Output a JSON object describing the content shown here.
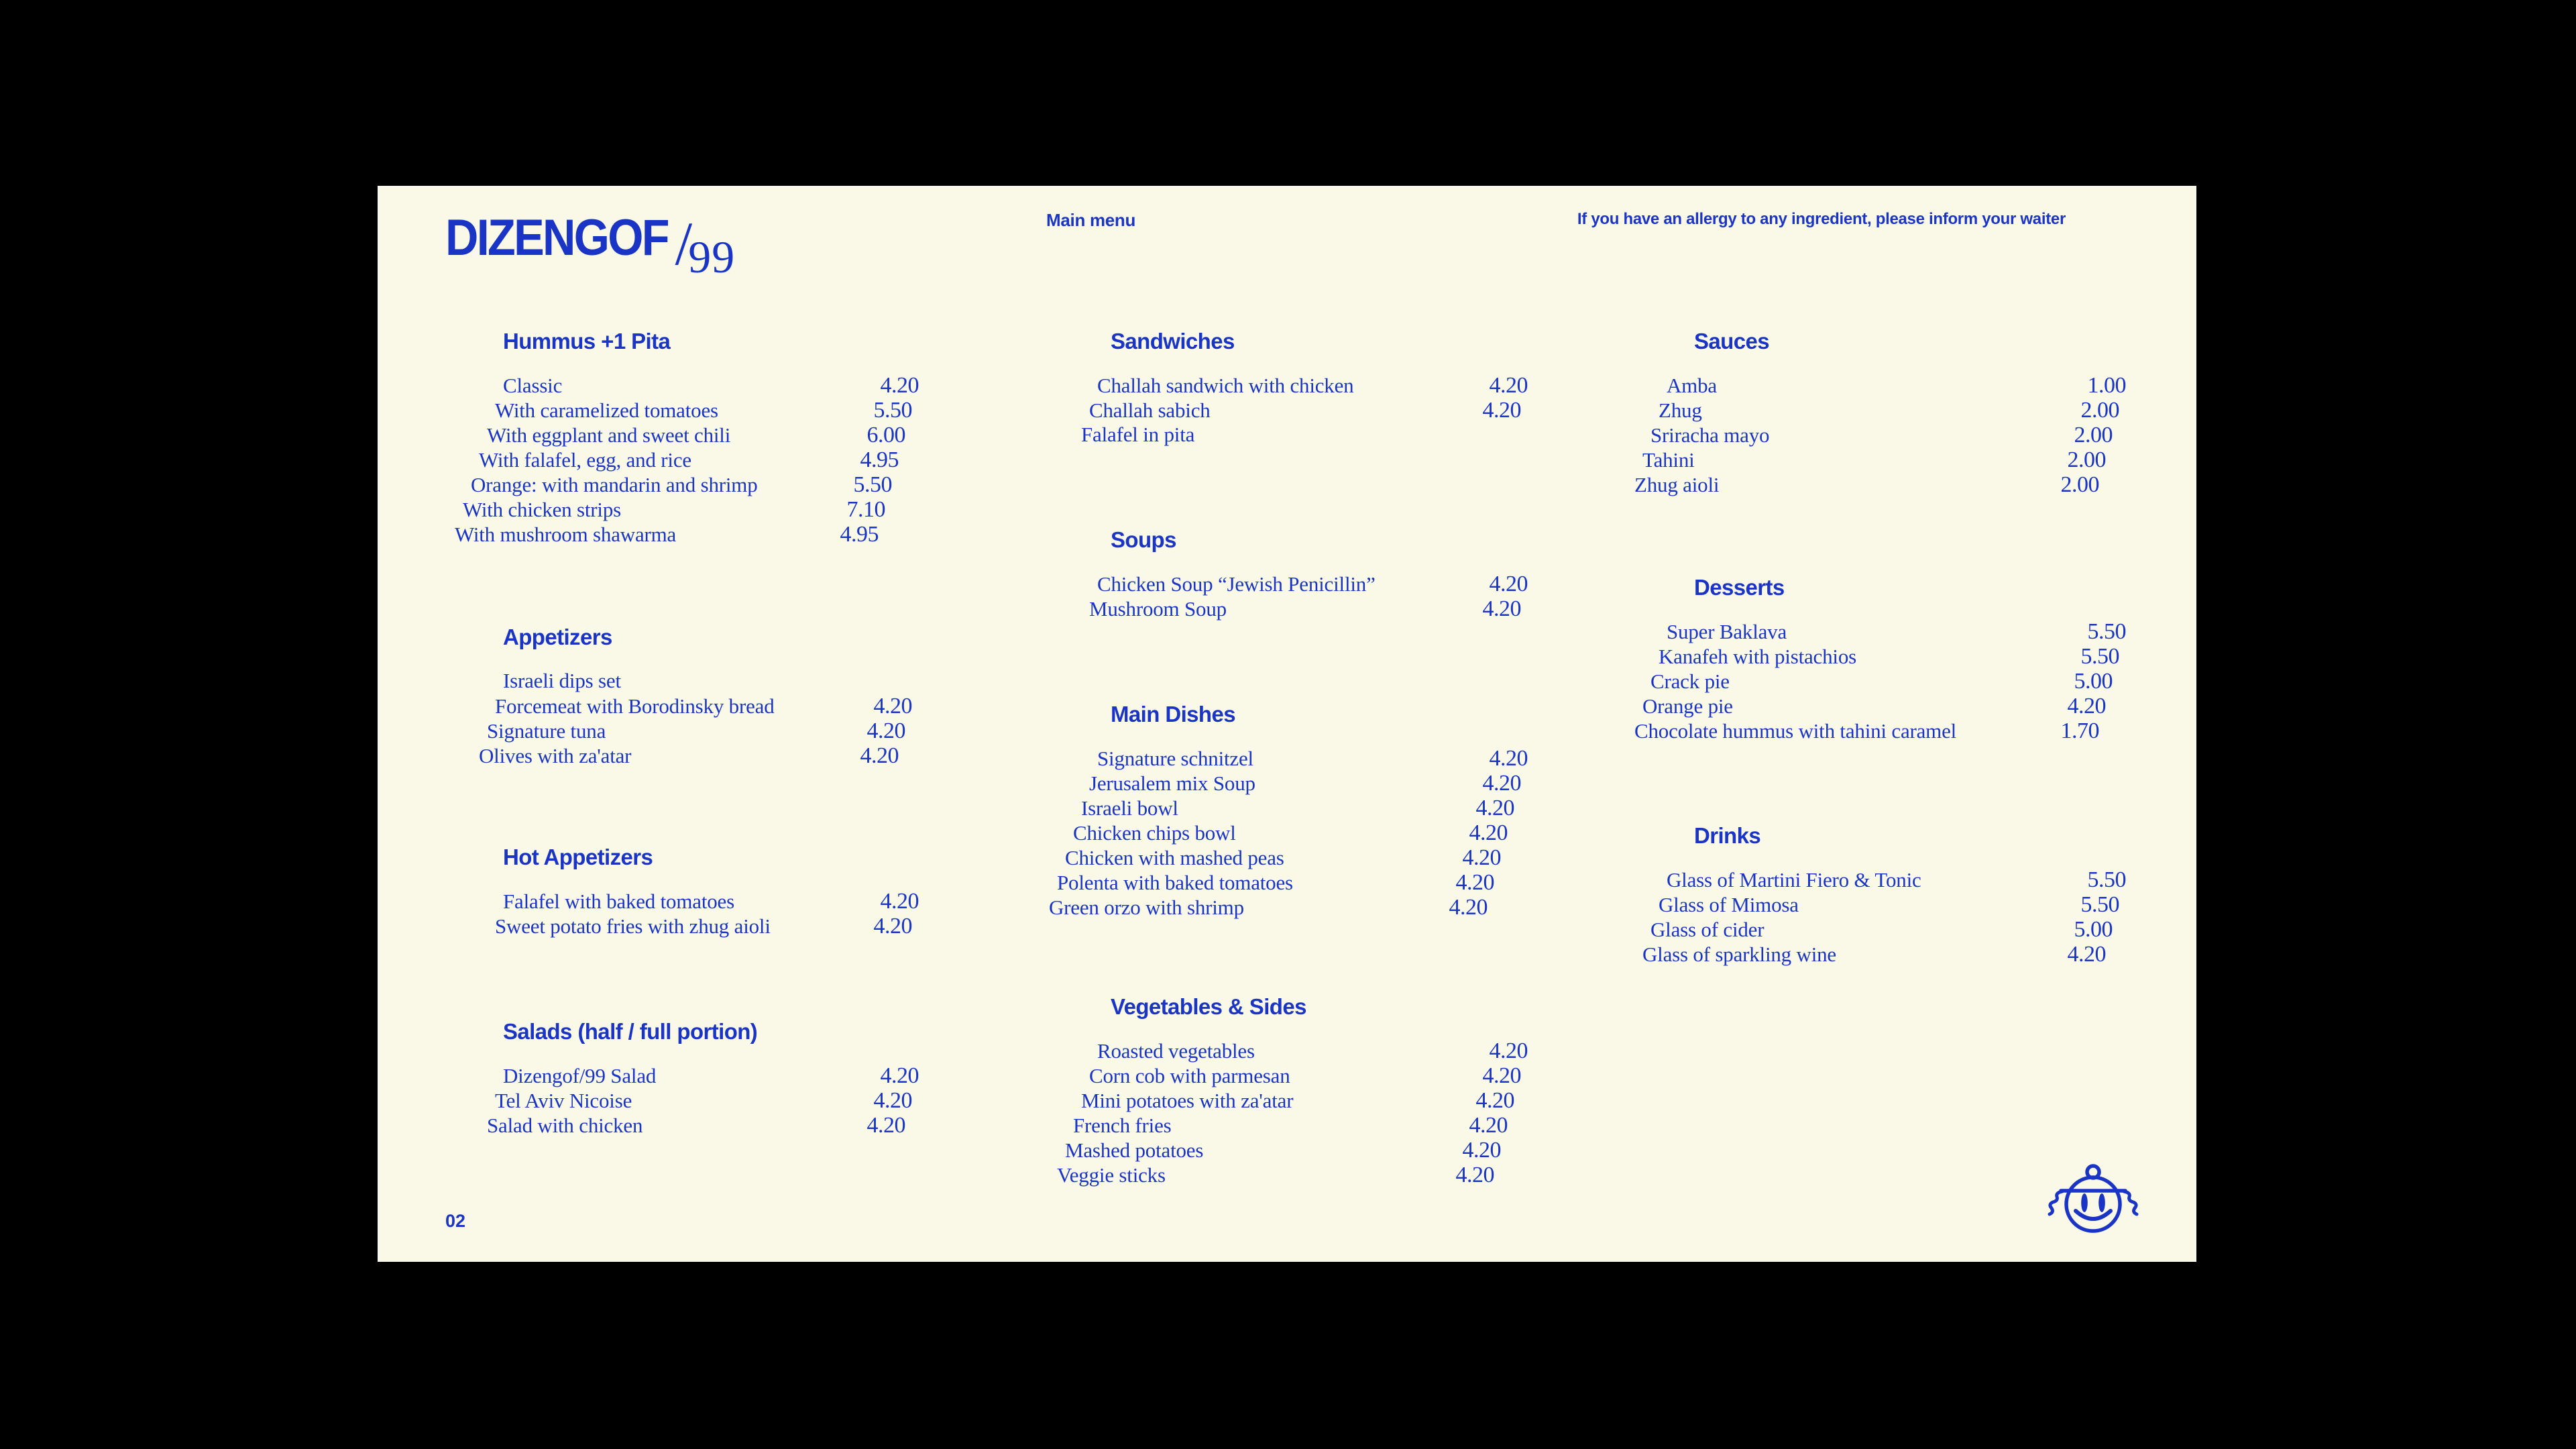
{
  "page": {
    "background": "#000000",
    "card_background": "#FAF9E7",
    "accent_blue": "#1A35C5"
  },
  "header": {
    "logo_main": "DIZENGOF",
    "logo_slash": "/",
    "logo_suffix": "99",
    "menu_label": "Main menu",
    "allergy_note": "If you have an allergy to any ingredient, please inform your waiter"
  },
  "footer": {
    "page_number": "02",
    "smiley_icon": "smiley-with-kippah-and-payot"
  },
  "sections": [
    {
      "id": "hummus",
      "title": "Hummus +1 Pita",
      "items": [
        {
          "name": "Classic",
          "price": "4.20"
        },
        {
          "name": "With caramelized tomatoes",
          "price": "5.50"
        },
        {
          "name": "With eggplant and sweet chili",
          "price": "6.00"
        },
        {
          "name": "With falafel, egg, and rice",
          "price": "4.95"
        },
        {
          "name": "Orange: with mandarin and shrimp",
          "price": "5.50"
        },
        {
          "name": "With chicken strips",
          "price": "7.10"
        },
        {
          "name": "With mushroom shawarma",
          "price": "4.95"
        }
      ]
    },
    {
      "id": "appetizers",
      "title": "Appetizers",
      "items": [
        {
          "name": "Israeli dips set",
          "price": ""
        },
        {
          "name": "Forcemeat with Borodinsky bread",
          "price": "4.20"
        },
        {
          "name": "Signature tuna",
          "price": "4.20"
        },
        {
          "name": "Olives with za'atar",
          "price": "4.20"
        }
      ]
    },
    {
      "id": "hot-appetizers",
      "title": "Hot Appetizers",
      "items": [
        {
          "name": "Falafel with baked tomatoes",
          "price": "4.20"
        },
        {
          "name": "Sweet potato fries with zhug aioli",
          "price": "4.20"
        }
      ]
    },
    {
      "id": "salads",
      "title": "Salads (half / full portion)",
      "items": [
        {
          "name": "Dizengof/99 Salad",
          "price": "4.20"
        },
        {
          "name": "Tel Aviv Nicoise",
          "price": "4.20"
        },
        {
          "name": "Salad with chicken",
          "price": "4.20"
        }
      ]
    },
    {
      "id": "sandwiches",
      "title": "Sandwiches",
      "items": [
        {
          "name": "Challah sandwich with chicken",
          "price": "4.20"
        },
        {
          "name": "Challah sabich",
          "price": "4.20"
        },
        {
          "name": "Falafel in pita",
          "price": ""
        }
      ]
    },
    {
      "id": "soups",
      "title": "Soups",
      "items": [
        {
          "name": "Chicken Soup “Jewish Penicillin”",
          "price": "4.20"
        },
        {
          "name": "Mushroom Soup",
          "price": "4.20"
        }
      ]
    },
    {
      "id": "main-dishes",
      "title": "Main Dishes",
      "items": [
        {
          "name": "Signature schnitzel",
          "price": "4.20"
        },
        {
          "name": "Jerusalem mix Soup",
          "price": "4.20"
        },
        {
          "name": "Israeli bowl",
          "price": "4.20"
        },
        {
          "name": "Chicken chips bowl",
          "price": "4.20"
        },
        {
          "name": "Chicken with mashed peas",
          "price": "4.20"
        },
        {
          "name": "Polenta with baked tomatoes",
          "price": "4.20"
        },
        {
          "name": "Green orzo with shrimp",
          "price": "4.20"
        }
      ]
    },
    {
      "id": "vegetables-sides",
      "title": "Vegetables & Sides",
      "items": [
        {
          "name": "Roasted vegetables",
          "price": "4.20"
        },
        {
          "name": "Corn cob with parmesan",
          "price": "4.20"
        },
        {
          "name": "Mini potatoes with za'atar",
          "price": "4.20"
        },
        {
          "name": "French fries",
          "price": "4.20"
        },
        {
          "name": "Mashed potatoes",
          "price": "4.20"
        },
        {
          "name": "Veggie sticks",
          "price": "4.20"
        }
      ]
    },
    {
      "id": "sauces",
      "title": "Sauces",
      "items": [
        {
          "name": "Amba",
          "price": "1.00"
        },
        {
          "name": "Zhug",
          "price": "2.00"
        },
        {
          "name": "Sriracha mayo",
          "price": "2.00"
        },
        {
          "name": "Tahini",
          "price": "2.00"
        },
        {
          "name": "Zhug aioli",
          "price": "2.00"
        }
      ]
    },
    {
      "id": "desserts",
      "title": "Desserts",
      "items": [
        {
          "name": "Super Baklava",
          "price": "5.50"
        },
        {
          "name": "Kanafeh with pistachios",
          "price": "5.50"
        },
        {
          "name": "Crack pie",
          "price": "5.00"
        },
        {
          "name": "Orange pie",
          "price": "4.20"
        },
        {
          "name": "Chocolate hummus with tahini caramel",
          "price": "1.70"
        }
      ]
    },
    {
      "id": "drinks",
      "title": "Drinks",
      "items": [
        {
          "name": "Glass of Martini Fiero & Tonic",
          "price": "5.50"
        },
        {
          "name": "Glass of Mimosa",
          "price": "5.50"
        },
        {
          "name": "Glass of cider",
          "price": "5.00"
        },
        {
          "name": "Glass of sparkling wine",
          "price": "4.20"
        }
      ]
    }
  ]
}
